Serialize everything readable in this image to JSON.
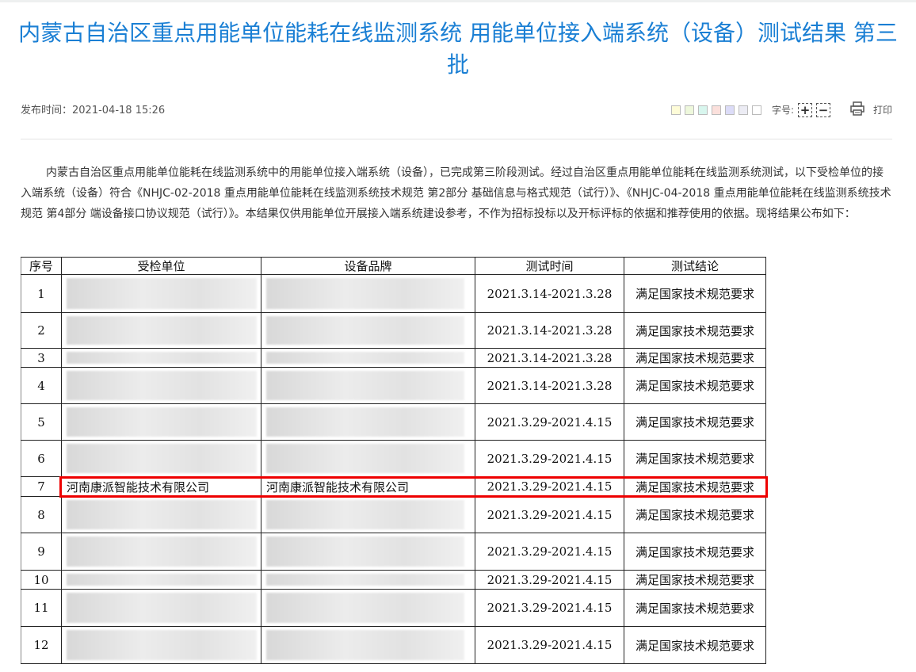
{
  "title": "内蒙古自治区重点用能单位能耗在线监测系统 用能单位接入端系统（设备）测试结果 第三批",
  "publish_label": "发布时间：",
  "publish_time": "2021-04-18 15:26",
  "tools": {
    "swatches": [
      "#fefcd8",
      "#eef8dc",
      "#d8f6ee",
      "#fbe0dc",
      "#dcdcf8",
      "#ececf4",
      "#ffffff"
    ],
    "font_size_label": "字号:",
    "increase": "+",
    "decrease": "−",
    "print_label": "打印"
  },
  "intro": "内蒙古自治区重点用能单位能耗在线监测系统中的用能单位接入端系统（设备），已完成第三阶段测试。经过自治区重点用能单位能耗在线监测系统测试，以下受检单位的接入端系统（设备）符合《NHJC-02-2018 重点用能单位能耗在线监测系统技术规范 第2部分 基础信息与格式规范（试行）》、《NHJC-04-2018 重点用能单位能耗在线监测系统技术规范 第4部分 端设备接口协议规范（试行）》。本结果仅供用能单位开展接入端系统建设参考，不作为招标投标以及开标评标的依据和推荐使用的依据。现将结果公布如下：",
  "table": {
    "headers": [
      "序号",
      "受检单位",
      "设备品牌",
      "测试时间",
      "测试结论"
    ],
    "rows": [
      {
        "no": "1",
        "unit": "",
        "brand": "",
        "time": "2021.3.14-2021.3.28",
        "result": "满足国家技术规范要求"
      },
      {
        "no": "2",
        "unit": "",
        "brand": "",
        "time": "2021.3.14-2021.3.28",
        "result": "满足国家技术规范要求"
      },
      {
        "no": "3",
        "unit": "",
        "brand": "",
        "time": "2021.3.14-2021.3.28",
        "result": "满足国家技术规范要求"
      },
      {
        "no": "4",
        "unit": "",
        "brand": "",
        "time": "2021.3.14-2021.3.28",
        "result": "满足国家技术规范要求"
      },
      {
        "no": "5",
        "unit": "",
        "brand": "",
        "time": "2021.3.29-2021.4.15",
        "result": "满足国家技术规范要求"
      },
      {
        "no": "6",
        "unit": "",
        "brand": "",
        "time": "2021.3.29-2021.4.15",
        "result": "满足国家技术规范要求"
      },
      {
        "no": "7",
        "unit": "河南康派智能技术有限公司",
        "brand": "河南康派智能技术有限公司",
        "time": "2021.3.29-2021.4.15",
        "result": "满足国家技术规范要求"
      },
      {
        "no": "8",
        "unit": "",
        "brand": "",
        "time": "2021.3.29-2021.4.15",
        "result": "满足国家技术规范要求"
      },
      {
        "no": "9",
        "unit": "",
        "brand": "",
        "time": "2021.3.29-2021.4.15",
        "result": "满足国家技术规范要求"
      },
      {
        "no": "10",
        "unit": "",
        "brand": "",
        "time": "2021.3.29-2021.4.15",
        "result": "满足国家技术规范要求"
      },
      {
        "no": "11",
        "unit": "",
        "brand": "",
        "time": "2021.3.29-2021.4.15",
        "result": "满足国家技术规范要求"
      },
      {
        "no": "12",
        "unit": "",
        "brand": "",
        "time": "2021.3.29-2021.4.15",
        "result": "满足国家技术规范要求"
      }
    ]
  }
}
